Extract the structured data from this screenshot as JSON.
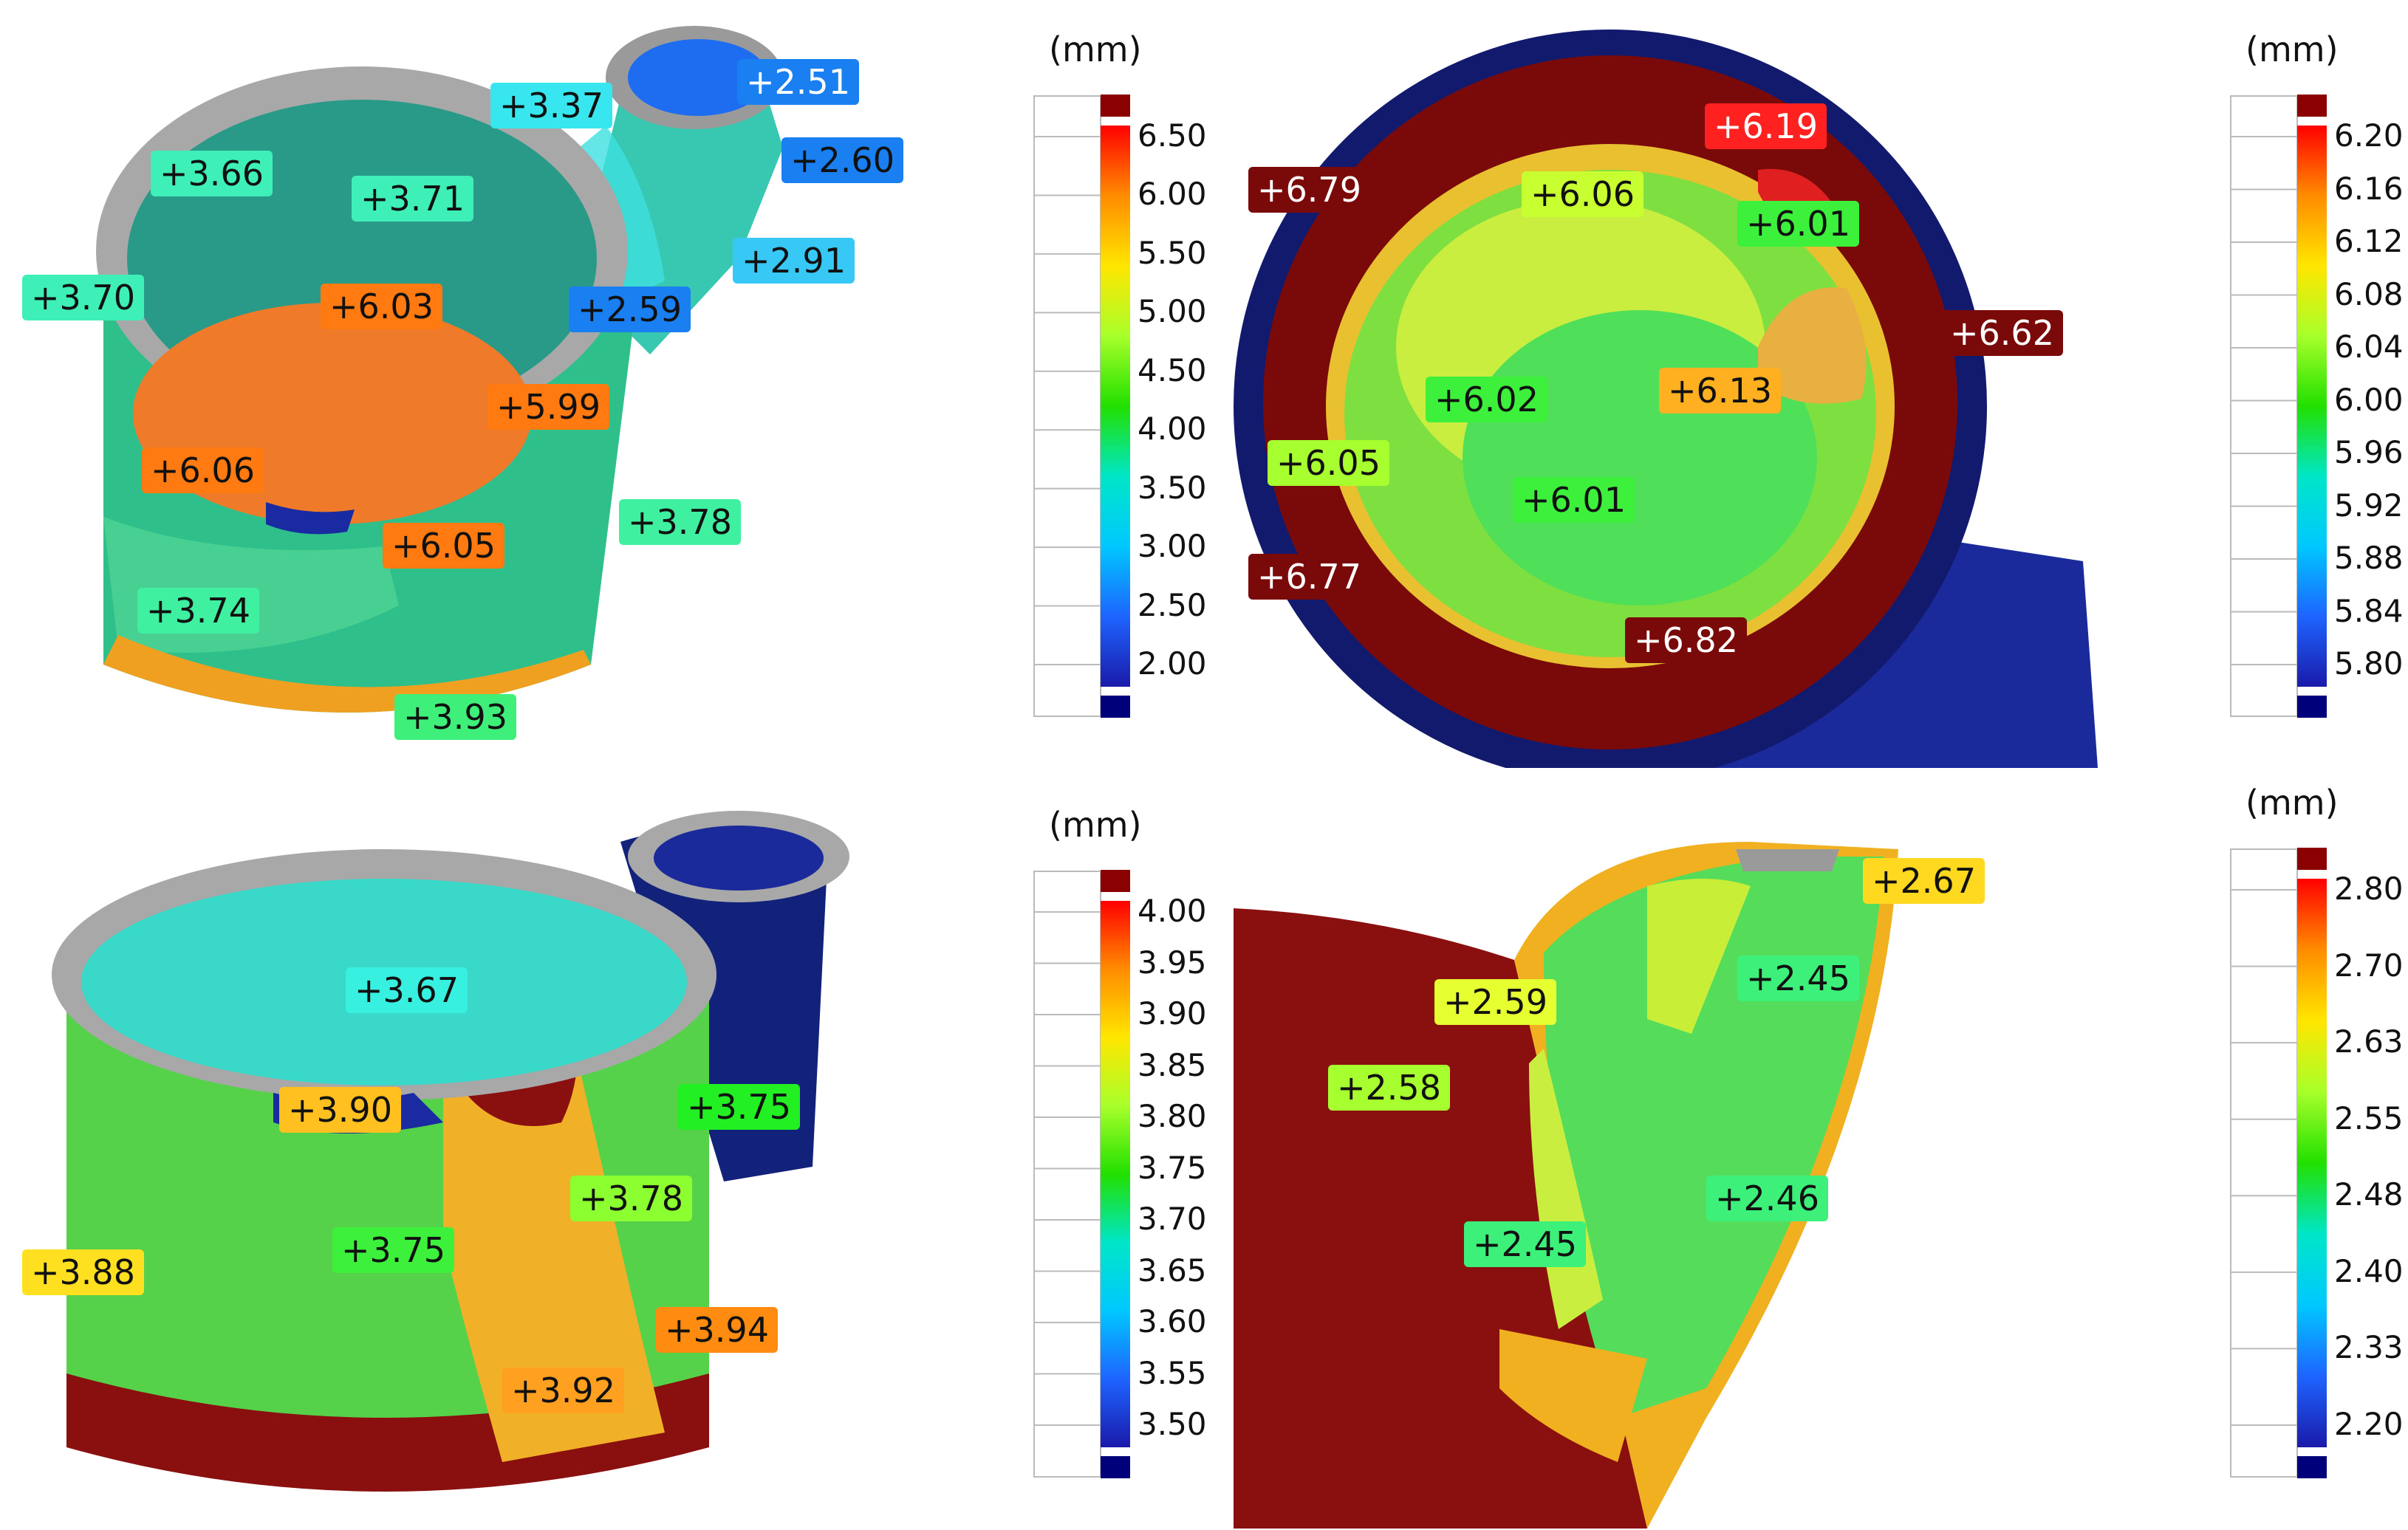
{
  "panels": [
    {
      "id": "top-left",
      "callouts": [
        {
          "text": "+2.51",
          "bg": "#1a7ff0",
          "dark": true
        },
        {
          "text": "+3.37",
          "bg": "#38e6f0",
          "dark": false
        },
        {
          "text": "+2.60",
          "bg": "#1a7ff0",
          "dark": false
        },
        {
          "text": "+3.66",
          "bg": "#3ef0b8",
          "dark": false
        },
        {
          "text": "+3.71",
          "bg": "#3ef0b8",
          "dark": false
        },
        {
          "text": "+2.91",
          "bg": "#38c8f5",
          "dark": false
        },
        {
          "text": "+3.70",
          "bg": "#3ef0b8",
          "dark": false
        },
        {
          "text": "+6.03",
          "bg": "#ff7a10",
          "dark": false
        },
        {
          "text": "+2.59",
          "bg": "#1a7ff0",
          "dark": false
        },
        {
          "text": "+5.99",
          "bg": "#ff7a10",
          "dark": false
        },
        {
          "text": "+6.06",
          "bg": "#ff7a10",
          "dark": false
        },
        {
          "text": "+3.78",
          "bg": "#3ef0a0",
          "dark": false
        },
        {
          "text": "+6.05",
          "bg": "#ff7a10",
          "dark": false
        },
        {
          "text": "+3.74",
          "bg": "#3ef0a0",
          "dark": false
        },
        {
          "text": "+3.93",
          "bg": "#3ef07a",
          "dark": false
        }
      ],
      "scale": {
        "unit": "(mm)",
        "ticks": [
          "6.50",
          "6.00",
          "5.50",
          "5.00",
          "4.50",
          "4.00",
          "3.50",
          "3.00",
          "2.50",
          "2.00"
        ],
        "colors": [
          "#8b0000",
          "#ff0000",
          "#ff8c00",
          "#ffe600",
          "#a8ff2a",
          "#22e000",
          "#00e6c8",
          "#00c8ff",
          "#1e64ff",
          "#1a1aaa",
          "#00007a"
        ]
      }
    },
    {
      "id": "top-right",
      "callouts": [
        {
          "text": "+6.19",
          "bg": "#ff2020",
          "dark": true
        },
        {
          "text": "+6.79",
          "bg": "#7a0a0a",
          "dark": true
        },
        {
          "text": "+6.06",
          "bg": "#c8ff30",
          "dark": false
        },
        {
          "text": "+6.01",
          "bg": "#3cf03c",
          "dark": false
        },
        {
          "text": "+6.62",
          "bg": "#7a0a0a",
          "dark": true
        },
        {
          "text": "+6.02",
          "bg": "#3cf03c",
          "dark": false
        },
        {
          "text": "+6.13",
          "bg": "#ffb020",
          "dark": false
        },
        {
          "text": "+6.05",
          "bg": "#a8ff30",
          "dark": false
        },
        {
          "text": "+6.01",
          "bg": "#3cf03c",
          "dark": false
        },
        {
          "text": "+6.77",
          "bg": "#7a0a0a",
          "dark": true
        },
        {
          "text": "+6.82",
          "bg": "#7a0a0a",
          "dark": true
        }
      ],
      "scale": {
        "unit": "(mm)",
        "ticks": [
          "6.20",
          "6.16",
          "6.12",
          "6.08",
          "6.04",
          "6.00",
          "5.96",
          "5.92",
          "5.88",
          "5.84",
          "5.80"
        ],
        "colors": [
          "#8b0000",
          "#ff0000",
          "#ff8c00",
          "#ffe600",
          "#a8ff2a",
          "#22e000",
          "#00e6c8",
          "#00c8ff",
          "#1e64ff",
          "#1a1aaa",
          "#00007a"
        ]
      }
    },
    {
      "id": "bottom-left",
      "callouts": [
        {
          "text": "+3.67",
          "bg": "#38f0e0",
          "dark": false
        },
        {
          "text": "+3.90",
          "bg": "#ffc020",
          "dark": false
        },
        {
          "text": "+3.75",
          "bg": "#22f022",
          "dark": false
        },
        {
          "text": "+3.78",
          "bg": "#8cff30",
          "dark": false
        },
        {
          "text": "+3.88",
          "bg": "#ffe020",
          "dark": false
        },
        {
          "text": "+3.75",
          "bg": "#3cf03c",
          "dark": false
        },
        {
          "text": "+3.94",
          "bg": "#ff8c10",
          "dark": false
        },
        {
          "text": "+3.92",
          "bg": "#ffa020",
          "dark": false
        }
      ],
      "scale": {
        "unit": "(mm)",
        "ticks": [
          "4.00",
          "3.95",
          "3.90",
          "3.85",
          "3.80",
          "3.75",
          "3.70",
          "3.65",
          "3.60",
          "3.55",
          "3.50"
        ],
        "colors": [
          "#8b0000",
          "#ff0000",
          "#ff8c00",
          "#ffe600",
          "#a8ff2a",
          "#22e000",
          "#00e6c8",
          "#00c8ff",
          "#1e64ff",
          "#1a1aaa",
          "#00007a"
        ]
      }
    },
    {
      "id": "bottom-right",
      "callouts": [
        {
          "text": "+2.67",
          "bg": "#ffd820",
          "dark": false
        },
        {
          "text": "+2.45",
          "bg": "#3cf07a",
          "dark": false
        },
        {
          "text": "+2.59",
          "bg": "#e6ff30",
          "dark": false
        },
        {
          "text": "+2.58",
          "bg": "#a8ff30",
          "dark": false
        },
        {
          "text": "+2.46",
          "bg": "#3cf07a",
          "dark": false
        },
        {
          "text": "+2.45",
          "bg": "#3cf07a",
          "dark": false
        }
      ],
      "scale": {
        "unit": "(mm)",
        "ticks": [
          "2.80",
          "2.70",
          "2.63",
          "2.55",
          "2.48",
          "2.40",
          "2.33",
          "2.20"
        ],
        "colors": [
          "#8b0000",
          "#ff0000",
          "#ff8c00",
          "#ffe600",
          "#a8ff2a",
          "#22e000",
          "#00e6c8",
          "#00c8ff",
          "#1e64ff",
          "#1a1aaa",
          "#00007a"
        ]
      }
    }
  ]
}
